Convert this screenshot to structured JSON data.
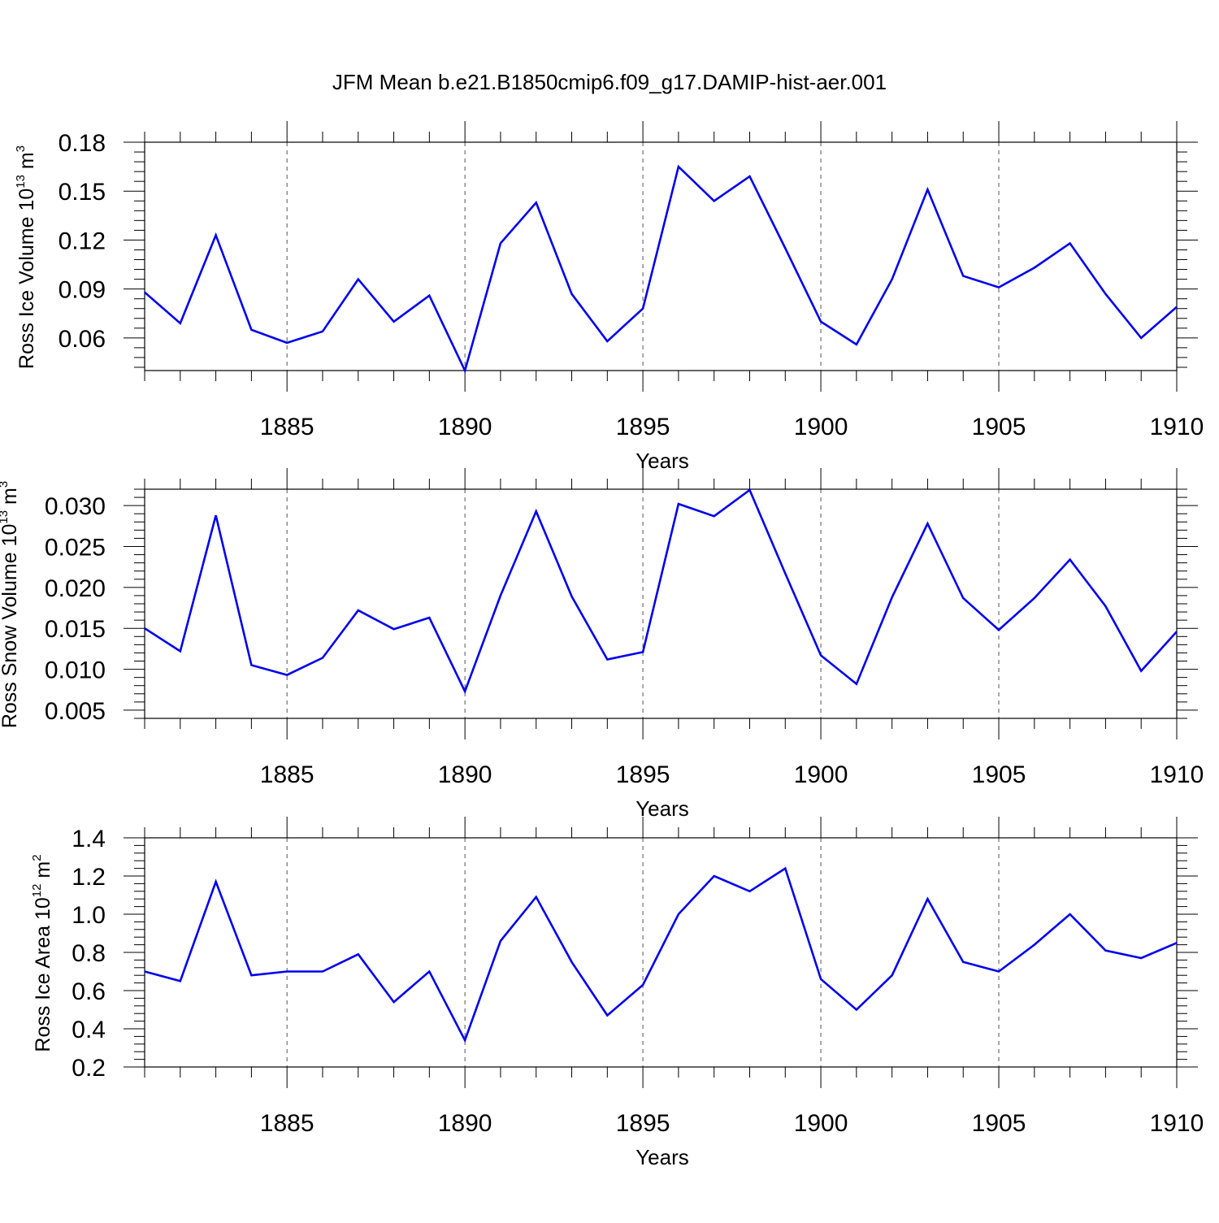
{
  "figure": {
    "title": "JFM Mean b.e21.B1850cmip6.f09_g17.DAMIP-hist-aer.001",
    "line_color": "#0000ee"
  },
  "chart_data": [
    {
      "type": "line",
      "title": "JFM Mean b.e21.B1850cmip6.f09_g17.DAMIP-hist-aer.001",
      "xlabel": "Years",
      "ylabel": "Ross Ice Volume 10",
      "ylabel_exp": "13",
      "ylabel_unit": " m",
      "ylabel_unit_exp": "3",
      "xlim": [
        1881,
        1910
      ],
      "ylim": [
        0.04,
        0.18
      ],
      "yticks": [
        0.06,
        0.09,
        0.12,
        0.15,
        0.18
      ],
      "ytick_labels": [
        "0.06",
        "0.09",
        "0.12",
        "0.15",
        "0.18"
      ],
      "xticks": [
        1885,
        1890,
        1895,
        1900,
        1905,
        1910
      ],
      "xtick_labels": [
        "1885",
        "1890",
        "1895",
        "1900",
        "1905",
        "1910"
      ],
      "grid": "vertical dashed at major x ticks",
      "x": [
        1881,
        1882,
        1883,
        1884,
        1885,
        1886,
        1887,
        1888,
        1889,
        1890,
        1891,
        1892,
        1893,
        1894,
        1895,
        1896,
        1897,
        1898,
        1899,
        1900,
        1901,
        1902,
        1903,
        1904,
        1905,
        1906,
        1907,
        1908,
        1909,
        1910
      ],
      "series": [
        {
          "values": [
            0.088,
            0.069,
            0.123,
            0.065,
            0.057,
            0.064,
            0.096,
            0.07,
            0.086,
            0.04,
            0.118,
            0.143,
            0.087,
            0.058,
            0.078,
            0.165,
            0.144,
            0.159,
            0.115,
            0.07,
            0.056,
            0.096,
            0.151,
            0.098,
            0.091,
            0.103,
            0.118,
            0.087,
            0.06,
            0.079
          ]
        }
      ]
    },
    {
      "type": "line",
      "xlabel": "Years",
      "ylabel": "Ross Snow Volume 10",
      "ylabel_exp": "13",
      "ylabel_unit": " m",
      "ylabel_unit_exp": "3",
      "xlim": [
        1881,
        1910
      ],
      "ylim": [
        0.004,
        0.032
      ],
      "yticks": [
        0.005,
        0.01,
        0.015,
        0.02,
        0.025,
        0.03
      ],
      "ytick_labels": [
        "0.005",
        "0.010",
        "0.015",
        "0.020",
        "0.025",
        "0.030"
      ],
      "xticks": [
        1885,
        1890,
        1895,
        1900,
        1905,
        1910
      ],
      "xtick_labels": [
        "1885",
        "1890",
        "1895",
        "1900",
        "1905",
        "1910"
      ],
      "grid": "vertical dashed at major x ticks",
      "x": [
        1881,
        1882,
        1883,
        1884,
        1885,
        1886,
        1887,
        1888,
        1889,
        1890,
        1891,
        1892,
        1893,
        1894,
        1895,
        1896,
        1897,
        1898,
        1899,
        1900,
        1901,
        1902,
        1903,
        1904,
        1905,
        1906,
        1907,
        1908,
        1909,
        1910
      ],
      "series": [
        {
          "values": [
            0.015,
            0.0122,
            0.0288,
            0.0105,
            0.0093,
            0.0114,
            0.0172,
            0.0149,
            0.0163,
            0.0073,
            0.019,
            0.0293,
            0.0189,
            0.0112,
            0.0121,
            0.0302,
            0.0287,
            0.0319,
            0.0217,
            0.0117,
            0.0082,
            0.0188,
            0.0278,
            0.0187,
            0.0148,
            0.0187,
            0.0234,
            0.0177,
            0.0098,
            0.0146
          ]
        }
      ]
    },
    {
      "type": "line",
      "xlabel": "Years",
      "ylabel": "Ross Ice Area 10",
      "ylabel_exp": "12",
      "ylabel_unit": " m",
      "ylabel_unit_exp": "2",
      "xlim": [
        1881,
        1910
      ],
      "ylim": [
        0.2,
        1.4
      ],
      "yticks": [
        0.2,
        0.4,
        0.6,
        0.8,
        1.0,
        1.2,
        1.4
      ],
      "ytick_labels": [
        "0.2",
        "0.4",
        "0.6",
        "0.8",
        "1.0",
        "1.2",
        "1.4"
      ],
      "xticks": [
        1885,
        1890,
        1895,
        1900,
        1905,
        1910
      ],
      "xtick_labels": [
        "1885",
        "1890",
        "1895",
        "1900",
        "1905",
        "1910"
      ],
      "grid": "vertical dashed at major x ticks",
      "x": [
        1881,
        1882,
        1883,
        1884,
        1885,
        1886,
        1887,
        1888,
        1889,
        1890,
        1891,
        1892,
        1893,
        1894,
        1895,
        1896,
        1897,
        1898,
        1899,
        1900,
        1901,
        1902,
        1903,
        1904,
        1905,
        1906,
        1907,
        1908,
        1909,
        1910
      ],
      "series": [
        {
          "values": [
            0.7,
            0.65,
            1.17,
            0.68,
            0.7,
            0.7,
            0.79,
            0.54,
            0.7,
            0.34,
            0.86,
            1.09,
            0.75,
            0.47,
            0.63,
            1.0,
            1.2,
            1.12,
            1.24,
            0.66,
            0.5,
            0.68,
            1.08,
            0.75,
            0.7,
            0.84,
            1.0,
            0.81,
            0.77,
            0.85
          ]
        }
      ]
    }
  ]
}
